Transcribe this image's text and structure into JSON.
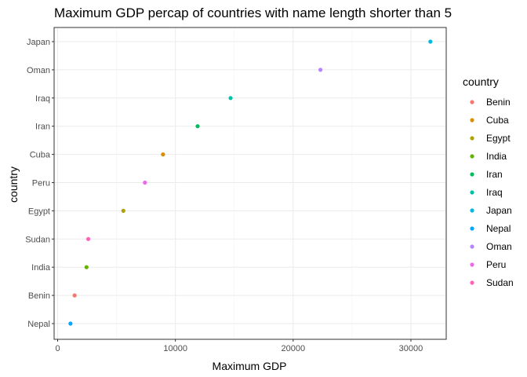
{
  "chart_data": {
    "type": "scatter",
    "title": "Maximum GDP percap of countries with name length shorter than 5",
    "xlabel": "Maximum GDP",
    "ylabel": "country",
    "xlim": [
      -300,
      33000
    ],
    "xticks": [
      0,
      10000,
      20000,
      30000
    ],
    "xtick_labels": [
      "0",
      "10000",
      "20000",
      "30000"
    ],
    "grid": true,
    "legend_position": "right",
    "legend_title": "country",
    "categories": [
      "Nepal",
      "Benin",
      "India",
      "Sudan",
      "Egypt",
      "Peru",
      "Cuba",
      "Iran",
      "Iraq",
      "Oman",
      "Japan"
    ],
    "points": [
      {
        "country": "Japan",
        "x": 31656
      },
      {
        "country": "Oman",
        "x": 22317
      },
      {
        "country": "Iraq",
        "x": 14688
      },
      {
        "country": "Iran",
        "x": 11889
      },
      {
        "country": "Cuba",
        "x": 8948
      },
      {
        "country": "Peru",
        "x": 7409
      },
      {
        "country": "Egypt",
        "x": 5581
      },
      {
        "country": "Sudan",
        "x": 2602
      },
      {
        "country": "India",
        "x": 2452
      },
      {
        "country": "Benin",
        "x": 1441
      },
      {
        "country": "Nepal",
        "x": 1091
      }
    ],
    "legend": [
      {
        "name": "Benin",
        "color": "#F8766D"
      },
      {
        "name": "Cuba",
        "color": "#DB8E00"
      },
      {
        "name": "Egypt",
        "color": "#AEA200"
      },
      {
        "name": "India",
        "color": "#64B200"
      },
      {
        "name": "Iran",
        "color": "#00BD5C"
      },
      {
        "name": "Iraq",
        "color": "#00C1A7"
      },
      {
        "name": "Japan",
        "color": "#00BADE"
      },
      {
        "name": "Nepal",
        "color": "#00A6FF"
      },
      {
        "name": "Oman",
        "color": "#B385FF"
      },
      {
        "name": "Peru",
        "color": "#EF67EB"
      },
      {
        "name": "Sudan",
        "color": "#FF63B6"
      }
    ]
  }
}
